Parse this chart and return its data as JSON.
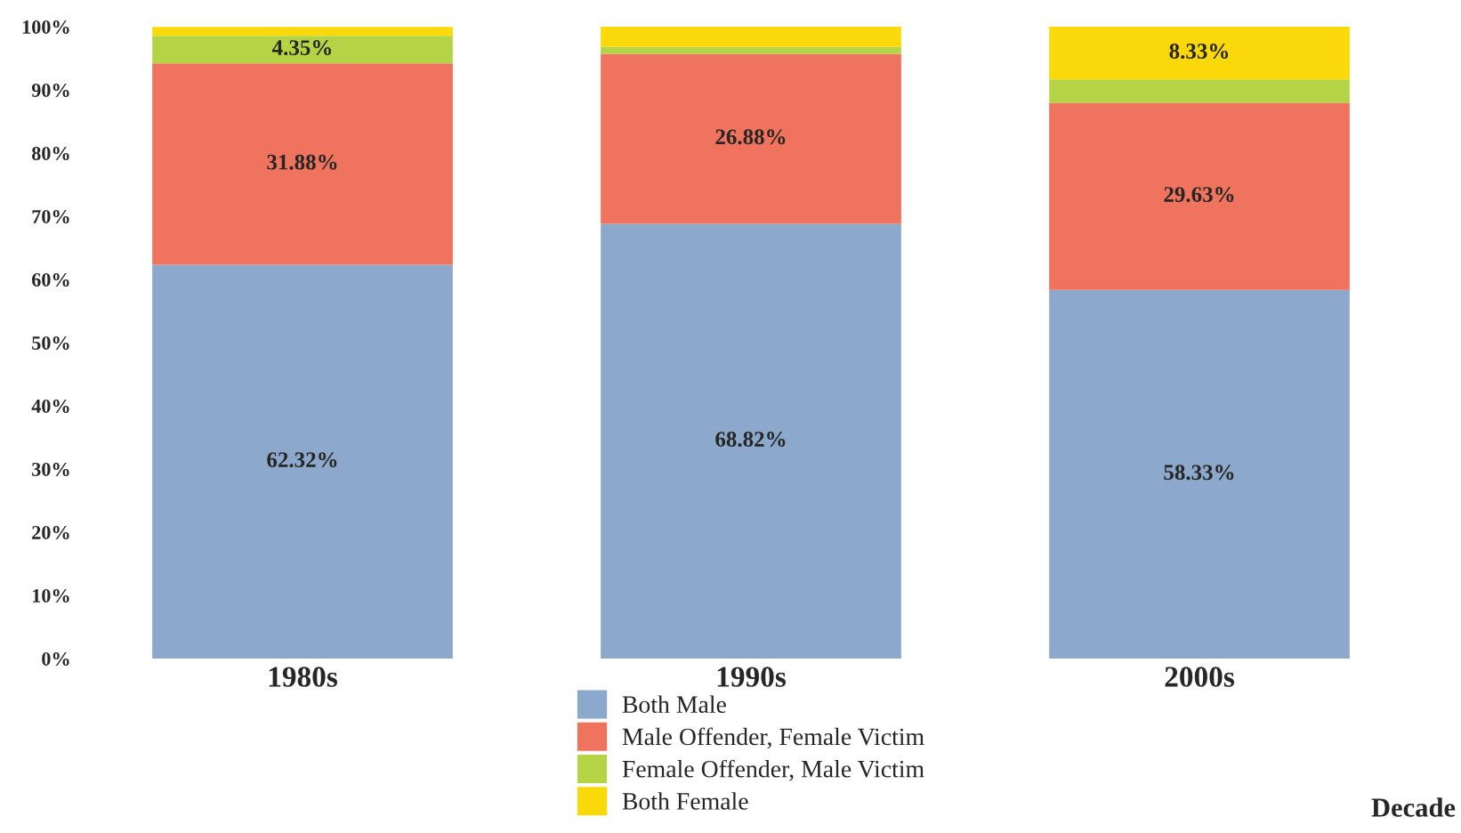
{
  "chart_data": {
    "type": "bar",
    "stacked": true,
    "xlabel": "Decade",
    "categories": [
      "1980s",
      "1990s",
      "2000s"
    ],
    "series": [
      {
        "name": "Both Male",
        "color": "#8ca8cb",
        "values": [
          62.32,
          68.82,
          58.33
        ],
        "value_labels": [
          "62.32%",
          "68.82%",
          "58.33%"
        ]
      },
      {
        "name": "Male Offender, Female Victim",
        "color": "#f0735d",
        "values": [
          31.88,
          26.88,
          29.63
        ],
        "value_labels": [
          "31.88%",
          "26.88%",
          "29.63%"
        ]
      },
      {
        "name": "Female Offender, Male Victim",
        "color": "#b5d445",
        "values": [
          4.35,
          1.1,
          3.7
        ],
        "value_labels": [
          "4.35%",
          null,
          null
        ]
      },
      {
        "name": "Both Female",
        "color": "#fbd80a",
        "values": [
          1.4,
          3.2,
          8.33
        ],
        "value_labels": [
          null,
          null,
          "8.33%"
        ]
      }
    ],
    "ylim": [
      0,
      100
    ],
    "yticks": [
      {
        "value": 0,
        "label": "0%"
      },
      {
        "value": 10,
        "label": "10%"
      },
      {
        "value": 20,
        "label": "20%"
      },
      {
        "value": 30,
        "label": "30%"
      },
      {
        "value": 40,
        "label": "40%"
      },
      {
        "value": 50,
        "label": "50%"
      },
      {
        "value": 60,
        "label": "60%"
      },
      {
        "value": 70,
        "label": "70%"
      },
      {
        "value": 80,
        "label": "80%"
      },
      {
        "value": 90,
        "label": "90%"
      },
      {
        "value": 100,
        "label": "100%"
      }
    ],
    "grid": false,
    "legend": "bottom"
  }
}
